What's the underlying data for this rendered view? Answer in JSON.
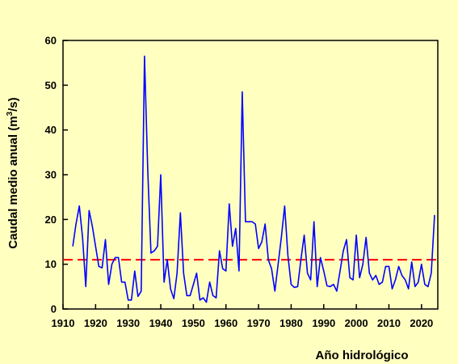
{
  "chart_data": {
    "type": "line",
    "title": "",
    "xlabel": "Año hidrológico",
    "ylabel": "Caudal medio anual (m³/s)",
    "ylabel_parts": [
      "Caudal medio anual (m",
      "3",
      "/s)"
    ],
    "xlim": [
      1910,
      2025
    ],
    "ylim": [
      0,
      60
    ],
    "x_ticks": [
      1910,
      1920,
      1930,
      1940,
      1950,
      1960,
      1970,
      1980,
      1990,
      2000,
      2010,
      2020
    ],
    "y_ticks": [
      0,
      10,
      20,
      30,
      40,
      50,
      60
    ],
    "grid": false,
    "series": [
      {
        "color": "#0000ff",
        "x": [
          1913,
          1914,
          1915,
          1916,
          1917,
          1918,
          1919,
          1920,
          1921,
          1922,
          1923,
          1924,
          1925,
          1926,
          1927,
          1928,
          1929,
          1930,
          1931,
          1932,
          1933,
          1934,
          1935,
          1936,
          1937,
          1938,
          1939,
          1940,
          1941,
          1942,
          1943,
          1944,
          1945,
          1946,
          1947,
          1948,
          1949,
          1950,
          1951,
          1952,
          1953,
          1954,
          1955,
          1956,
          1957,
          1958,
          1959,
          1960,
          1961,
          1962,
          1963,
          1964,
          1965,
          1966,
          1967,
          1968,
          1969,
          1970,
          1971,
          1972,
          1973,
          1974,
          1975,
          1976,
          1977,
          1978,
          1979,
          1980,
          1981,
          1982,
          1983,
          1984,
          1985,
          1986,
          1987,
          1988,
          1989,
          1990,
          1991,
          1992,
          1993,
          1994,
          1995,
          1996,
          1997,
          1998,
          1999,
          2000,
          2001,
          2002,
          2003,
          2004,
          2005,
          2006,
          2007,
          2008,
          2009,
          2010,
          2011,
          2012,
          2013,
          2014,
          2015,
          2016,
          2017,
          2018,
          2019,
          2020,
          2021,
          2022,
          2023,
          2024
        ],
        "y": [
          14,
          19,
          23,
          16,
          5,
          22,
          18.5,
          14,
          9.5,
          9.2,
          15.5,
          5.5,
          10,
          11.5,
          11.5,
          6,
          6,
          2,
          2,
          8.5,
          2.8,
          4,
          56.5,
          31,
          12.5,
          13,
          14,
          30,
          6,
          11,
          4.5,
          2.3,
          8,
          21.5,
          8,
          3,
          3,
          5.5,
          8,
          2,
          2.5,
          1.5,
          6,
          3,
          2.5,
          13,
          9,
          8.5,
          23.5,
          14,
          18,
          8.5,
          48.5,
          19.5,
          19.5,
          19.5,
          19,
          13.5,
          15,
          19,
          11,
          9,
          4,
          10,
          16,
          23,
          12,
          5.5,
          4.8,
          5,
          11,
          16.5,
          8,
          6.5,
          19.5,
          5,
          11.5,
          8.5,
          5.2,
          5,
          5.5,
          4,
          8.5,
          13,
          15.5,
          7,
          6.5,
          16.5,
          7,
          10,
          16,
          8,
          6.5,
          7.5,
          5.5,
          6,
          9.5,
          9.5,
          4.5,
          6.5,
          9.5,
          7.5,
          6.5,
          4.5,
          10.5,
          5,
          6,
          10,
          5.5,
          5,
          8,
          21
        ]
      }
    ],
    "reference_line": {
      "y": 11,
      "style": "dashed",
      "color": "#ff0000"
    }
  }
}
